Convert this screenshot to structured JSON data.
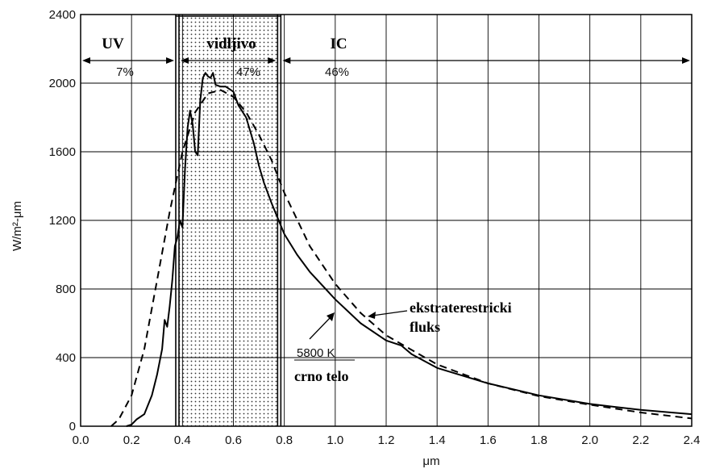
{
  "chart_data": {
    "type": "line",
    "xlabel": "μm",
    "ylabel": "W/m²-μm",
    "xlim": [
      0.0,
      2.4
    ],
    "ylim": [
      0,
      2400
    ],
    "x_ticks": [
      "0.0",
      "0.2",
      "0.4",
      "0.6",
      "0.8",
      "1.0",
      "1.2",
      "1.4",
      "1.6",
      "1.8",
      "2.0",
      "2.2",
      "2.4"
    ],
    "y_ticks": [
      "0",
      "400",
      "800",
      "1200",
      "1600",
      "2000",
      "2400"
    ],
    "grid": true,
    "regions": [
      {
        "label": "UV",
        "x_from": 0.0,
        "x_to": 0.38,
        "percent": "7%"
      },
      {
        "label": "vidljivo",
        "x_from": 0.38,
        "x_to": 0.78,
        "percent": "47%",
        "shaded": true
      },
      {
        "label": "IC",
        "x_from": 0.78,
        "x_to": 2.4,
        "percent": "46%"
      }
    ],
    "annotations": {
      "extraterrestrial": "ekstraterestricki fluks",
      "blackbody_temp": "5800 K",
      "blackbody": "crno telo"
    },
    "series": [
      {
        "name": "ekstraterestricki fluks",
        "style": "solid",
        "points": [
          [
            0.18,
            0
          ],
          [
            0.2,
            10
          ],
          [
            0.22,
            40
          ],
          [
            0.25,
            70
          ],
          [
            0.28,
            180
          ],
          [
            0.3,
            300
          ],
          [
            0.32,
            450
          ],
          [
            0.33,
            620
          ],
          [
            0.34,
            580
          ],
          [
            0.35,
            700
          ],
          [
            0.36,
            850
          ],
          [
            0.37,
            1050
          ],
          [
            0.38,
            1100
          ],
          [
            0.39,
            1200
          ],
          [
            0.4,
            1160
          ],
          [
            0.41,
            1500
          ],
          [
            0.42,
            1740
          ],
          [
            0.43,
            1840
          ],
          [
            0.44,
            1760
          ],
          [
            0.45,
            1600
          ],
          [
            0.46,
            1580
          ],
          [
            0.47,
            1900
          ],
          [
            0.48,
            2030
          ],
          [
            0.49,
            2060
          ],
          [
            0.5,
            2040
          ],
          [
            0.51,
            2030
          ],
          [
            0.52,
            2060
          ],
          [
            0.53,
            1990
          ],
          [
            0.55,
            1980
          ],
          [
            0.57,
            1980
          ],
          [
            0.6,
            1950
          ],
          [
            0.62,
            1870
          ],
          [
            0.65,
            1800
          ],
          [
            0.68,
            1650
          ],
          [
            0.7,
            1520
          ],
          [
            0.72,
            1420
          ],
          [
            0.75,
            1300
          ],
          [
            0.8,
            1120
          ],
          [
            0.85,
            1000
          ],
          [
            0.9,
            900
          ],
          [
            1.0,
            740
          ],
          [
            1.1,
            600
          ],
          [
            1.2,
            500
          ],
          [
            1.26,
            470
          ],
          [
            1.3,
            420
          ],
          [
            1.4,
            340
          ],
          [
            1.6,
            250
          ],
          [
            1.8,
            180
          ],
          [
            2.0,
            130
          ],
          [
            2.2,
            95
          ],
          [
            2.4,
            70
          ]
        ]
      },
      {
        "name": "crno telo",
        "style": "dashed",
        "points": [
          [
            0.12,
            0
          ],
          [
            0.15,
            40
          ],
          [
            0.2,
            180
          ],
          [
            0.25,
            450
          ],
          [
            0.3,
            850
          ],
          [
            0.35,
            1250
          ],
          [
            0.4,
            1600
          ],
          [
            0.45,
            1830
          ],
          [
            0.5,
            1940
          ],
          [
            0.55,
            1960
          ],
          [
            0.6,
            1920
          ],
          [
            0.65,
            1830
          ],
          [
            0.7,
            1700
          ],
          [
            0.75,
            1550
          ],
          [
            0.8,
            1360
          ],
          [
            0.9,
            1050
          ],
          [
            1.0,
            830
          ],
          [
            1.1,
            660
          ],
          [
            1.2,
            530
          ],
          [
            1.4,
            360
          ],
          [
            1.6,
            250
          ],
          [
            1.8,
            175
          ],
          [
            2.0,
            125
          ],
          [
            2.2,
            80
          ],
          [
            2.4,
            45
          ]
        ]
      }
    ]
  }
}
